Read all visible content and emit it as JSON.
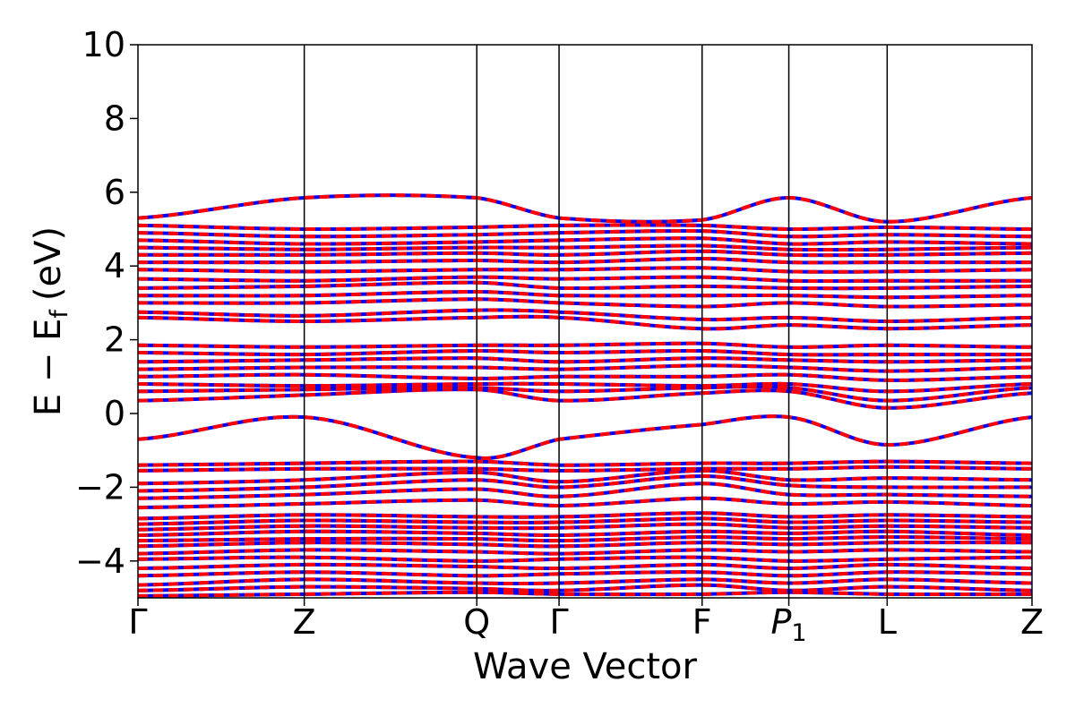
{
  "chart_data": {
    "type": "line",
    "title": "",
    "xlabel": "Wave Vector",
    "ylabel_main": "E − E",
    "ylabel_sub": "f",
    "ylabel_unit": "(eV)",
    "ylim": [
      -5,
      10
    ],
    "yticks": [
      "−4",
      "−2",
      "0",
      "2",
      "4",
      "6",
      "8",
      "10"
    ],
    "ytick_values": [
      -4,
      -2,
      0,
      2,
      4,
      6,
      8,
      10
    ],
    "xlim": [
      0,
      1
    ],
    "kpoints": [
      {
        "label": "Γ",
        "x": 0.0
      },
      {
        "label": "Z",
        "x": 0.186
      },
      {
        "label": "Q",
        "x": 0.379
      },
      {
        "label": "Γ",
        "x": 0.471
      },
      {
        "label": "F",
        "x": 0.631
      },
      {
        "label": "P",
        "sub": "1",
        "x": 0.728,
        "italic": true
      },
      {
        "label": "L",
        "x": 0.838
      },
      {
        "label": "Z",
        "x": 1.0
      }
    ],
    "grid": false,
    "series": [
      {
        "color": "#0000ff",
        "style": "solid"
      },
      {
        "color": "#ff0000",
        "style": "dashed"
      }
    ],
    "bands": [
      [
        -4.95,
        -4.9,
        -4.85,
        -4.9,
        -4.9,
        -4.85,
        -4.9,
        -4.9
      ],
      [
        -4.8,
        -4.7,
        -4.75,
        -4.8,
        -4.65,
        -4.8,
        -4.7,
        -4.8
      ],
      [
        -4.65,
        -4.5,
        -4.6,
        -4.6,
        -4.5,
        -4.6,
        -4.5,
        -4.6
      ],
      [
        -4.4,
        -4.3,
        -4.4,
        -4.35,
        -4.3,
        -4.4,
        -4.3,
        -4.35
      ],
      [
        -4.2,
        -4.1,
        -4.15,
        -4.2,
        -4.1,
        -4.2,
        -4.1,
        -4.2
      ],
      [
        -3.95,
        -3.9,
        -4.0,
        -3.95,
        -3.9,
        -4.0,
        -3.95,
        -3.9
      ],
      [
        -3.8,
        -3.7,
        -3.75,
        -3.8,
        -3.7,
        -3.75,
        -3.7,
        -3.75
      ],
      [
        -3.6,
        -3.5,
        -3.55,
        -3.6,
        -3.5,
        -3.55,
        -3.5,
        -3.5
      ],
      [
        -3.45,
        -3.4,
        -3.4,
        -3.45,
        -3.35,
        -3.4,
        -3.35,
        -3.4
      ],
      [
        -3.3,
        -3.2,
        -3.25,
        -3.3,
        -3.2,
        -3.25,
        -3.2,
        -3.3
      ],
      [
        -3.15,
        -3.05,
        -3.1,
        -3.1,
        -3.0,
        -3.1,
        -3.05,
        -3.1
      ],
      [
        -3.0,
        -2.9,
        -2.95,
        -2.95,
        -2.85,
        -2.95,
        -2.9,
        -2.95
      ],
      [
        -2.85,
        -2.75,
        -2.8,
        -2.8,
        -2.7,
        -2.8,
        -2.75,
        -2.8
      ],
      [
        -2.55,
        -2.45,
        -2.35,
        -2.5,
        -2.3,
        -2.45,
        -2.4,
        -2.5
      ],
      [
        -2.3,
        -2.2,
        -2.05,
        -2.25,
        -1.9,
        -2.2,
        -2.2,
        -2.25
      ],
      [
        -2.1,
        -2.0,
        -1.8,
        -2.0,
        -1.7,
        -1.95,
        -2.0,
        -2.0
      ],
      [
        -1.9,
        -1.8,
        -1.6,
        -1.85,
        -1.55,
        -1.8,
        -1.75,
        -1.8
      ],
      [
        -1.55,
        -1.5,
        -1.5,
        -1.55,
        -1.5,
        -1.5,
        -1.45,
        -1.5
      ],
      [
        -1.4,
        -1.35,
        -1.3,
        -1.4,
        -1.35,
        -1.35,
        -1.3,
        -1.35
      ],
      [
        -0.7,
        -0.1,
        -1.2,
        -0.7,
        -0.3,
        -0.1,
        -0.85,
        -0.1
      ],
      [
        0.35,
        0.5,
        0.65,
        0.35,
        0.55,
        0.6,
        0.15,
        0.55
      ],
      [
        0.6,
        0.65,
        0.7,
        0.6,
        0.7,
        0.7,
        0.35,
        0.7
      ],
      [
        0.8,
        0.75,
        0.8,
        0.8,
        0.75,
        0.8,
        0.6,
        0.8
      ],
      [
        1.0,
        1.05,
        0.95,
        1.0,
        1.0,
        1.05,
        0.9,
        1.0
      ],
      [
        1.2,
        1.25,
        1.25,
        1.2,
        1.3,
        1.25,
        1.15,
        1.25
      ],
      [
        1.4,
        1.45,
        1.5,
        1.4,
        1.5,
        1.45,
        1.4,
        1.45
      ],
      [
        1.65,
        1.6,
        1.7,
        1.65,
        1.7,
        1.6,
        1.6,
        1.6
      ],
      [
        1.85,
        1.8,
        1.85,
        1.85,
        1.9,
        1.8,
        1.85,
        1.8
      ],
      [
        2.6,
        2.5,
        2.6,
        2.6,
        2.3,
        2.4,
        2.3,
        2.4
      ],
      [
        2.75,
        2.65,
        2.8,
        2.75,
        2.55,
        2.6,
        2.5,
        2.6
      ],
      [
        3.0,
        3.0,
        3.1,
        3.0,
        2.9,
        3.0,
        2.9,
        2.95
      ],
      [
        3.2,
        3.2,
        3.3,
        3.2,
        3.2,
        3.2,
        3.15,
        3.2
      ],
      [
        3.4,
        3.45,
        3.55,
        3.4,
        3.45,
        3.4,
        3.4,
        3.45
      ],
      [
        3.65,
        3.6,
        3.7,
        3.65,
        3.7,
        3.6,
        3.6,
        3.6
      ],
      [
        3.9,
        3.85,
        3.9,
        3.9,
        3.95,
        3.85,
        3.85,
        3.9
      ],
      [
        4.1,
        4.1,
        4.15,
        4.1,
        4.2,
        4.1,
        4.1,
        4.1
      ],
      [
        4.3,
        4.3,
        4.35,
        4.3,
        4.4,
        4.3,
        4.3,
        4.35
      ],
      [
        4.5,
        4.45,
        4.5,
        4.5,
        4.55,
        4.45,
        4.45,
        4.5
      ],
      [
        4.7,
        4.6,
        4.65,
        4.7,
        4.75,
        4.6,
        4.65,
        4.6
      ],
      [
        4.9,
        4.8,
        4.85,
        4.9,
        4.95,
        4.8,
        4.85,
        4.8
      ],
      [
        5.1,
        5.0,
        5.05,
        5.1,
        5.1,
        5.0,
        5.05,
        5.0
      ],
      [
        5.3,
        5.85,
        5.85,
        5.3,
        5.25,
        5.85,
        5.2,
        5.85
      ]
    ]
  }
}
